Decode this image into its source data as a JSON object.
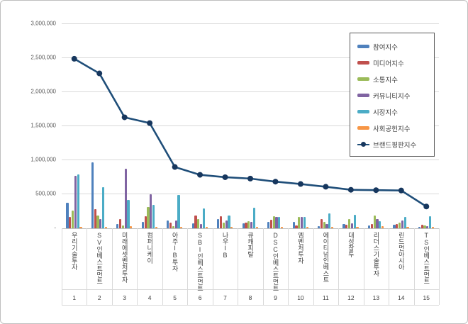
{
  "chart_data": {
    "type": "bar+line",
    "title": "",
    "xlabel": "",
    "ylabel": "",
    "ylim": [
      0,
      3000000
    ],
    "grid": true,
    "legend_position": "top-right",
    "y_ticks": [
      "3,000,000",
      "2,500,000",
      "2,000,000",
      "1,500,000",
      "1,000,000",
      "500,000",
      "-"
    ],
    "categories": [
      {
        "rank": "1",
        "name": "우리기술투자"
      },
      {
        "rank": "2",
        "name": "SV인베스트먼트"
      },
      {
        "rank": "3",
        "name": "미래에셋벤처투자"
      },
      {
        "rank": "4",
        "name": "컴퍼니케이"
      },
      {
        "rank": "5",
        "name": "아주IB투자"
      },
      {
        "rank": "6",
        "name": "SBI인베스트먼트"
      },
      {
        "rank": "7",
        "name": "나우IB"
      },
      {
        "rank": "8",
        "name": "큐캐피탈"
      },
      {
        "rank": "9",
        "name": "DSC인베스트먼트"
      },
      {
        "rank": "10",
        "name": "엠벤처투자"
      },
      {
        "rank": "11",
        "name": "에이티넘인베스트"
      },
      {
        "rank": "12",
        "name": "대성창투"
      },
      {
        "rank": "13",
        "name": "리더스기술투자"
      },
      {
        "rank": "14",
        "name": "린드먼아시아"
      },
      {
        "rank": "15",
        "name": "TS인베스트먼트"
      }
    ],
    "series": [
      {
        "name": "참여지수",
        "type": "bar",
        "color": "#4F81BD",
        "values": [
          360000,
          955000,
          50000,
          85000,
          105000,
          60000,
          130000,
          60000,
          80000,
          85000,
          20000,
          50000,
          30000,
          40000,
          15000
        ]
      },
      {
        "name": "미디어지수",
        "type": "bar",
        "color": "#C0504D",
        "values": [
          160000,
          275000,
          120000,
          165000,
          75000,
          175000,
          165000,
          70000,
          110000,
          30000,
          130000,
          45000,
          50000,
          55000,
          45000
        ]
      },
      {
        "name": "소통지수",
        "type": "bar",
        "color": "#9BBB59",
        "values": [
          255000,
          175000,
          30000,
          300000,
          25000,
          130000,
          75000,
          95000,
          165000,
          160000,
          80000,
          130000,
          175000,
          75000,
          35000
        ]
      },
      {
        "name": "커뮤니티지수",
        "type": "bar",
        "color": "#8064A2",
        "values": [
          765000,
          130000,
          865000,
          485000,
          105000,
          55000,
          105000,
          85000,
          155000,
          160000,
          50000,
          60000,
          120000,
          100000,
          20000
        ]
      },
      {
        "name": "시장지수",
        "type": "bar",
        "color": "#4BACC6",
        "values": [
          780000,
          590000,
          405000,
          335000,
          480000,
          280000,
          175000,
          290000,
          160000,
          155000,
          210000,
          190000,
          95000,
          160000,
          170000
        ]
      },
      {
        "name": "사회공헌지수",
        "type": "bar",
        "color": "#F79646",
        "values": [
          10000,
          10000,
          20000,
          15000,
          10000,
          10000,
          10000,
          10000,
          15000,
          10000,
          10000,
          10000,
          25000,
          10000,
          10000
        ]
      },
      {
        "name": "브랜드평판지수",
        "type": "line",
        "color": "#1F4E79",
        "marker_color": "#17375E",
        "values": [
          2480000,
          2265000,
          1620000,
          1535000,
          890000,
          775000,
          740000,
          720000,
          675000,
          640000,
          600000,
          555000,
          550000,
          545000,
          310000
        ]
      }
    ]
  }
}
